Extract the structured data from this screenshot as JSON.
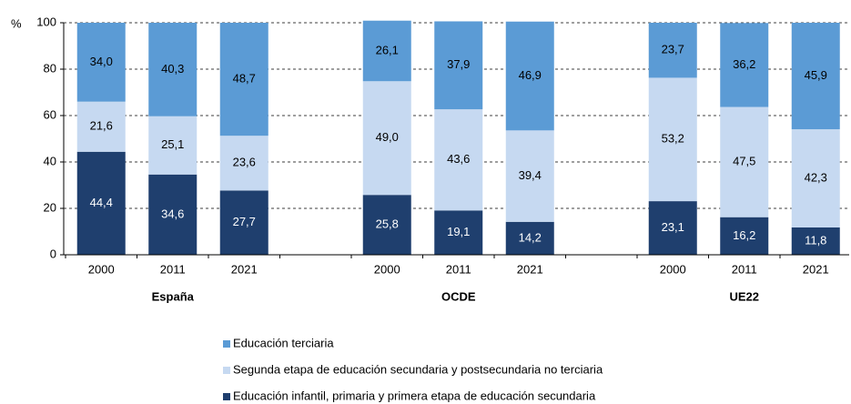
{
  "chart_data": {
    "type": "stacked_bar",
    "y_label": "%",
    "categories": [
      "2000",
      "2011",
      "2021",
      "2000",
      "2011",
      "2021",
      "2000",
      "2011",
      "2021"
    ],
    "groups": [
      "España",
      "OCDE",
      "UE22"
    ],
    "ylim": [
      0,
      100
    ],
    "yticks": [
      0,
      20,
      40,
      60,
      80,
      100
    ],
    "grid": true,
    "series": [
      {
        "name": "Educación infantil, primaria y primera etapa de educación secundaria",
        "color": "#1f3f6e",
        "values": [
          44.4,
          34.6,
          27.7,
          25.8,
          19.1,
          14.2,
          23.1,
          16.2,
          11.8
        ],
        "value_labels": [
          "44,4",
          "34,6",
          "27,7",
          "25,8",
          "19,1",
          "14,2",
          "23,1",
          "16,2",
          "11,8"
        ]
      },
      {
        "name": "Segunda etapa de educación secundaria y postsecundaria no terciaria",
        "color": "#c6d9f1",
        "values": [
          21.6,
          25.1,
          23.6,
          49.0,
          43.6,
          39.4,
          53.2,
          47.5,
          42.3
        ],
        "value_labels": [
          "21,6",
          "25,1",
          "23,6",
          "49,0",
          "43,6",
          "39,4",
          "53,2",
          "47,5",
          "42,3"
        ]
      },
      {
        "name": "Educación terciaria",
        "color": "#5b9bd5",
        "values": [
          34.0,
          40.3,
          48.7,
          26.1,
          37.9,
          46.9,
          23.7,
          36.2,
          45.9
        ],
        "value_labels": [
          "34,0",
          "40,3",
          "48,7",
          "26,1",
          "37,9",
          "46,9",
          "23,7",
          "36,2",
          "45,9"
        ]
      }
    ]
  }
}
